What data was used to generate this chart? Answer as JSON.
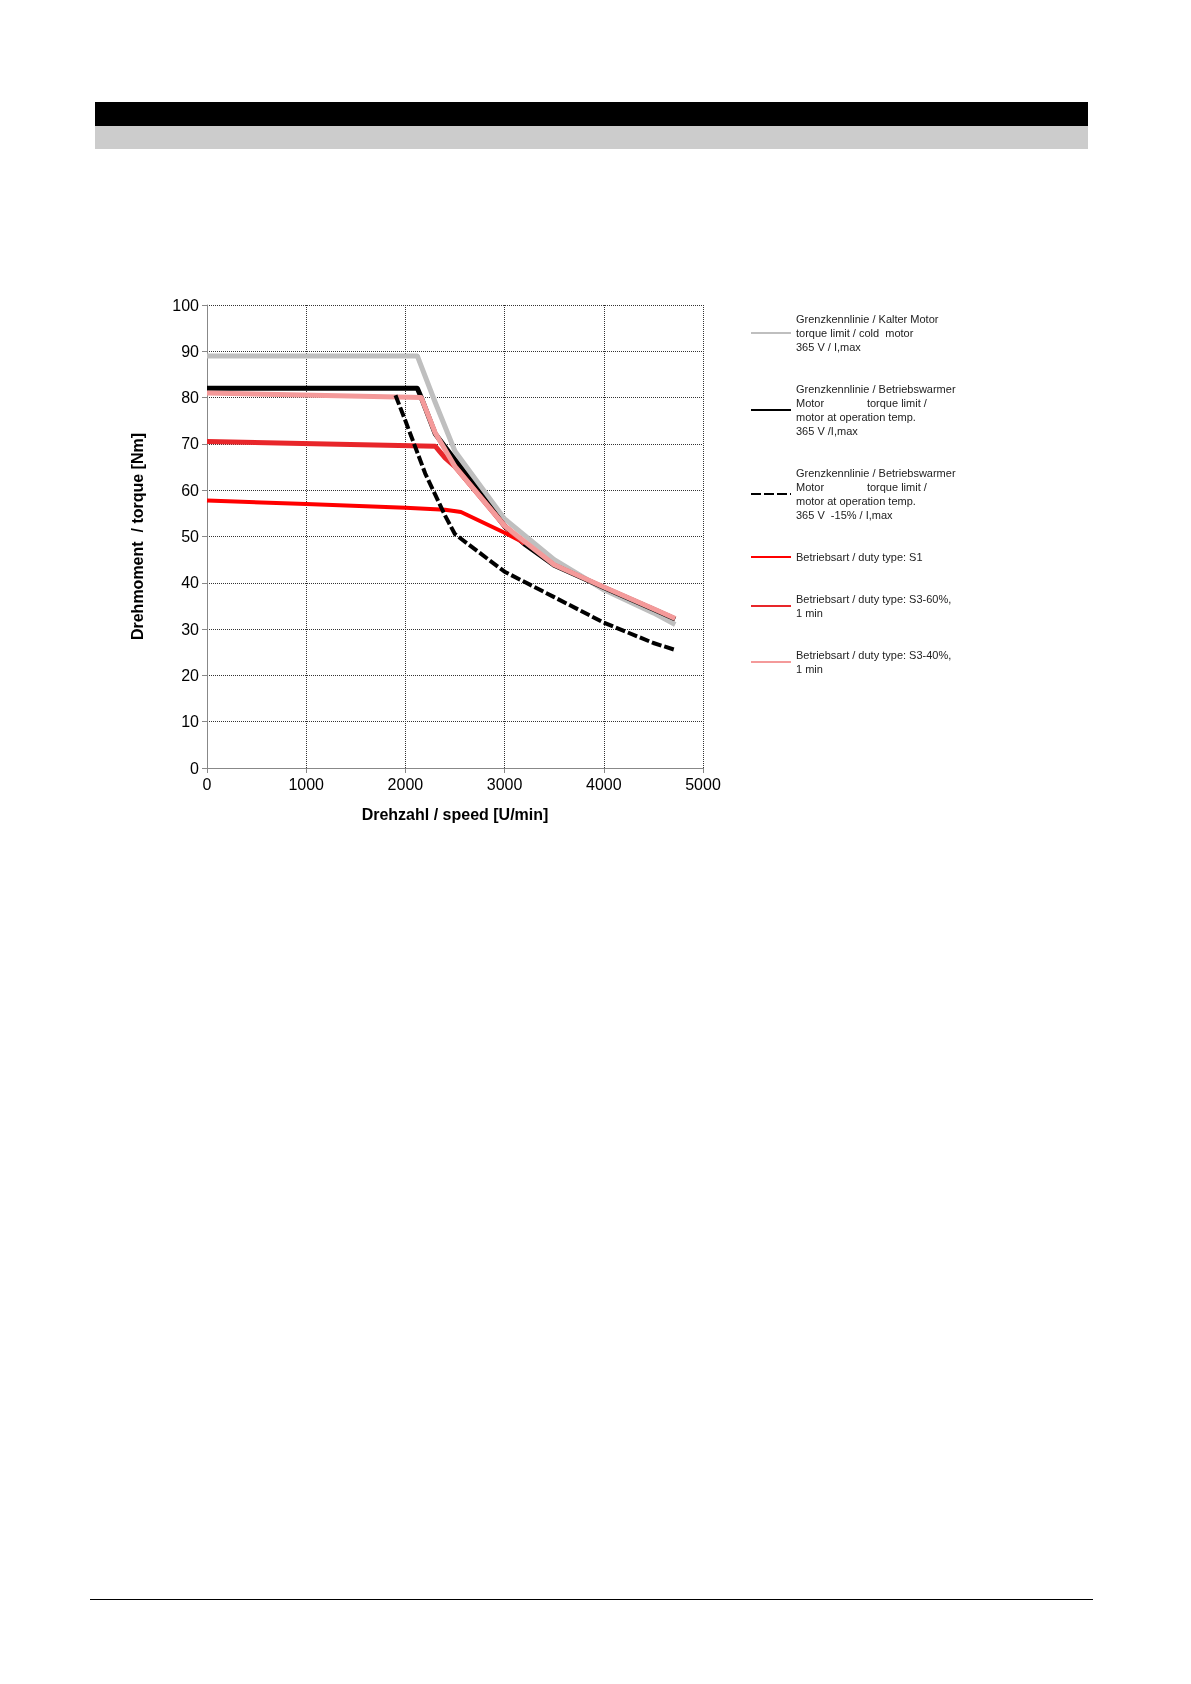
{
  "chart_data": {
    "type": "line",
    "xlabel": "Drehzahl / speed [U/min]",
    "ylabel": "Drehmoment  / torque [Nm]",
    "xlim": [
      0,
      5000
    ],
    "xticks": [
      0,
      1000,
      2000,
      3000,
      4000,
      5000
    ],
    "ylim": [
      0,
      100
    ],
    "yticks": [
      0,
      10,
      20,
      30,
      40,
      50,
      60,
      70,
      80,
      90,
      100
    ],
    "grid": true,
    "legend": "right",
    "marker": "none",
    "series": [
      {
        "name": "Grenzkennlinie / Kalter Motor\ntorque limit / cold  motor\n365 V / I,max",
        "color": "#bfbfbf",
        "line_style": "solid",
        "x": [
          0,
          2120,
          2300,
          2500,
          3000,
          3500,
          4000,
          4500,
          4720
        ],
        "values": [
          89,
          89,
          79,
          68.4,
          53.8,
          45,
          38.5,
          33.5,
          31
        ]
      },
      {
        "name": "Grenzkennlinie / Betriebswarmer\nMotor              torque limit /\nmotor at operation temp.\n365 V /I,max",
        "color": "#000000",
        "line_style": "solid",
        "x": [
          0,
          2120,
          2160,
          2300,
          2500,
          3000,
          3200,
          3500,
          4000,
          4500,
          4720
        ],
        "values": [
          82,
          82,
          80,
          72.2,
          66.5,
          52.2,
          48.4,
          43.8,
          39,
          34.3,
          32.2
        ]
      },
      {
        "name": "Grenzkennlinie / Betriebswarmer\nMotor              torque limit /\nmotor at operation temp.\n365 V  -15% / I,max",
        "color": "#000000",
        "line_style": "dashed",
        "x": [
          1900,
          2000,
          2200,
          2400,
          2500,
          3000,
          3500,
          4000,
          4500,
          4720
        ],
        "values": [
          80.5,
          75,
          63.6,
          54.5,
          50.5,
          42.4,
          36.9,
          31.4,
          27,
          25.5
        ]
      },
      {
        "name": "Betriebsart / duty type: S1",
        "color": "#ff0000",
        "line_style": "solid",
        "x": [
          0,
          1000,
          2000,
          2400,
          2560,
          3000,
          3200
        ],
        "values": [
          57.8,
          57,
          56.2,
          55.8,
          55.3,
          50.8,
          48.6
        ]
      },
      {
        "name": "Betriebsart / duty type: S3-60%,\n1 min",
        "color": "#e8262a",
        "line_style": "solid",
        "x": [
          0,
          2300,
          2400,
          2500,
          3000,
          3200
        ],
        "values": [
          70.5,
          69.5,
          67,
          65.1,
          52.3,
          48.5
        ]
      },
      {
        "name": "Betriebsart / duty type: S3-40%,\n1 min",
        "color": "#f49a9a",
        "line_style": "solid",
        "x": [
          0,
          2160,
          2300,
          2500,
          3000,
          3500,
          4000,
          4500,
          4720
        ],
        "values": [
          81,
          80,
          72.4,
          65.1,
          52.3,
          43.9,
          39.1,
          34.4,
          32.3
        ]
      }
    ]
  }
}
